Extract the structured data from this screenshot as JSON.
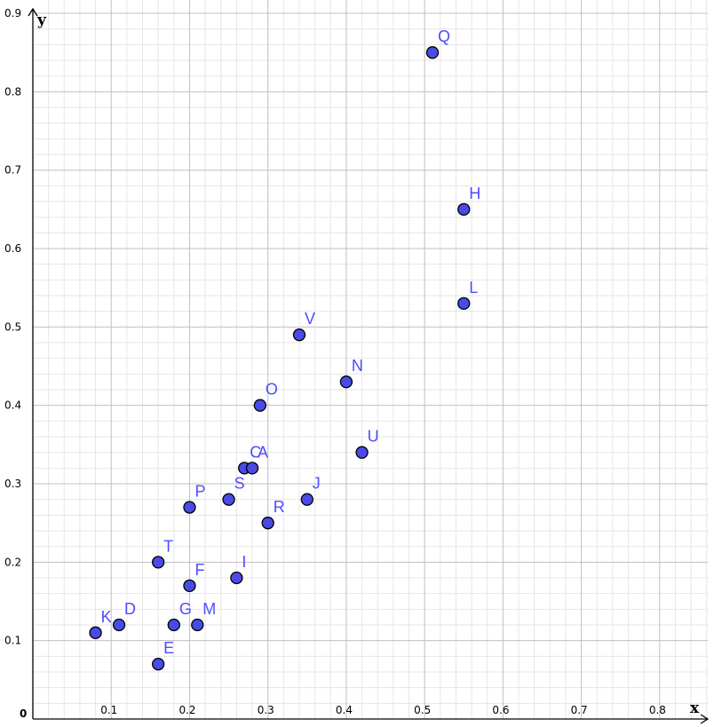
{
  "chart_data": {
    "type": "scatter",
    "title": "",
    "xlabel": "x",
    "ylabel": "y",
    "xlim": [
      0,
      0.9
    ],
    "ylim": [
      0,
      0.9
    ],
    "grid": true,
    "x_ticks": [
      "0.1",
      "0.2",
      "0.3",
      "0.4",
      "0.5",
      "0.6",
      "0.7",
      "0.8"
    ],
    "y_ticks": [
      "0.1",
      "0.2",
      "0.3",
      "0.4",
      "0.5",
      "0.6",
      "0.7",
      "0.8",
      "0.9"
    ],
    "origin_label": "0",
    "points": [
      {
        "label": "Q",
        "x": 0.51,
        "y": 0.85
      },
      {
        "label": "H",
        "x": 0.55,
        "y": 0.65
      },
      {
        "label": "L",
        "x": 0.55,
        "y": 0.53
      },
      {
        "label": "V",
        "x": 0.34,
        "y": 0.49
      },
      {
        "label": "N",
        "x": 0.4,
        "y": 0.43
      },
      {
        "label": "O",
        "x": 0.29,
        "y": 0.4
      },
      {
        "label": "U",
        "x": 0.42,
        "y": 0.34
      },
      {
        "label": "C",
        "x": 0.27,
        "y": 0.32
      },
      {
        "label": "A",
        "x": 0.28,
        "y": 0.32
      },
      {
        "label": "S",
        "x": 0.25,
        "y": 0.28
      },
      {
        "label": "J",
        "x": 0.35,
        "y": 0.28
      },
      {
        "label": "P",
        "x": 0.2,
        "y": 0.27
      },
      {
        "label": "R",
        "x": 0.3,
        "y": 0.25
      },
      {
        "label": "T",
        "x": 0.16,
        "y": 0.2
      },
      {
        "label": "I",
        "x": 0.26,
        "y": 0.18
      },
      {
        "label": "F",
        "x": 0.2,
        "y": 0.17
      },
      {
        "label": "D",
        "x": 0.11,
        "y": 0.12
      },
      {
        "label": "G",
        "x": 0.18,
        "y": 0.12
      },
      {
        "label": "M",
        "x": 0.21,
        "y": 0.12
      },
      {
        "label": "K",
        "x": 0.08,
        "y": 0.11
      },
      {
        "label": "E",
        "x": 0.16,
        "y": 0.07
      }
    ]
  },
  "colors": {
    "point_fill": "#4a4ae6",
    "point_stroke": "#000000",
    "label": "#4d4dff",
    "major_grid": "#c0c0c0",
    "minor_grid": "#e6e6e6",
    "axis": "#000000"
  }
}
